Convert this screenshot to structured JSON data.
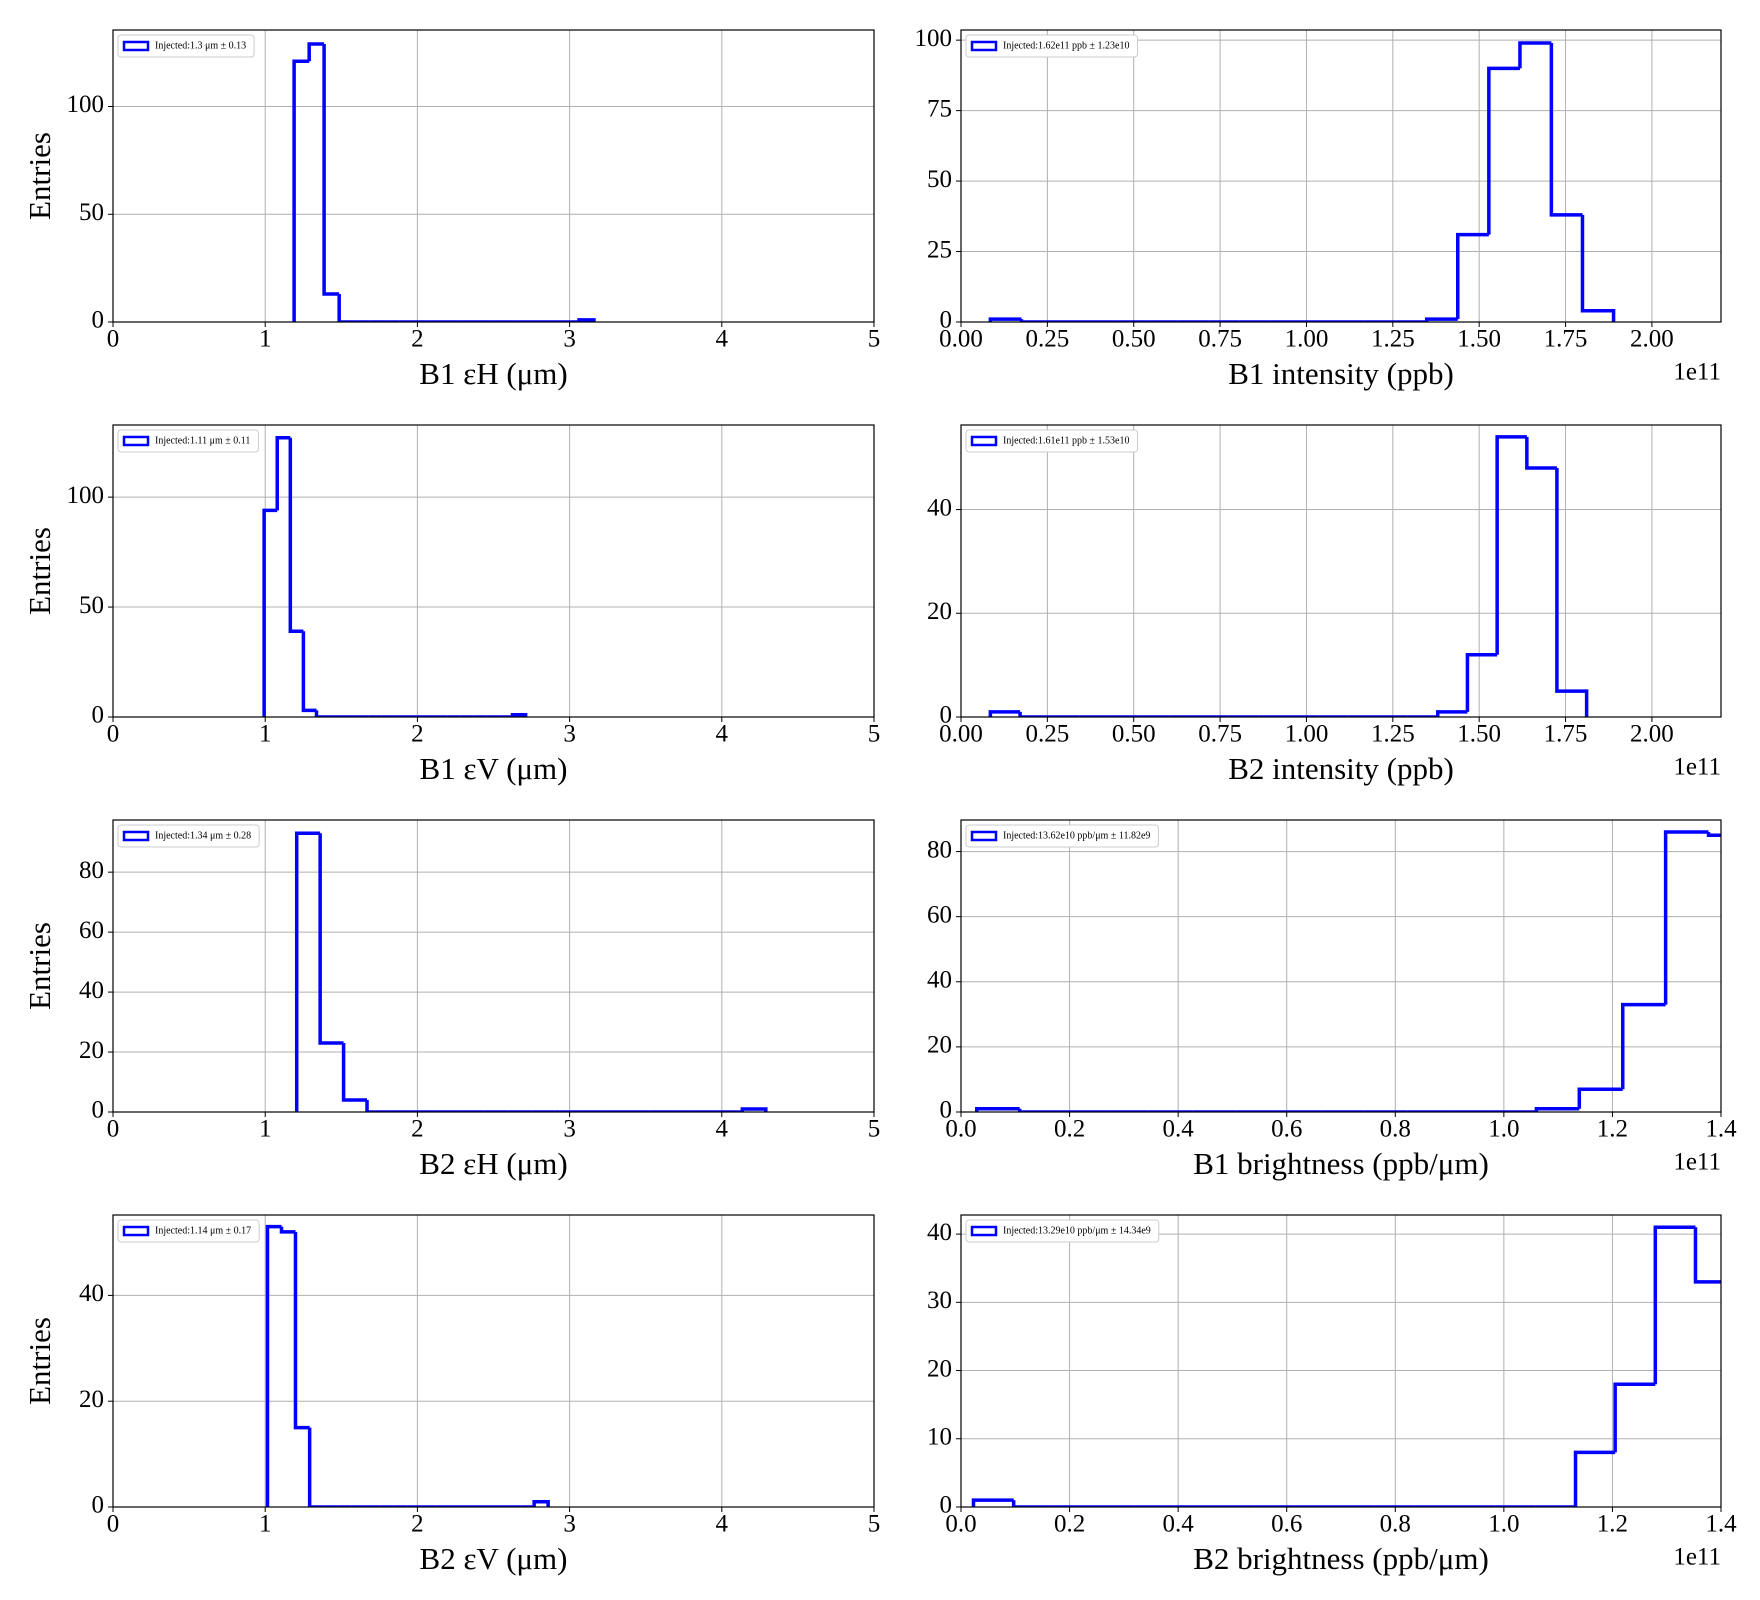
{
  "chart_data": [
    {
      "type": "histogram",
      "xlabel": "B1 εH (μm)",
      "ylabel": "Entries",
      "bins": [
        1.19,
        1.289,
        1.387,
        1.486,
        1.584,
        1.683,
        1.781,
        1.88,
        1.978,
        2.077,
        2.175,
        2.274,
        2.372,
        2.471,
        2.569,
        2.668,
        2.766,
        2.865,
        2.963,
        3.062,
        3.16
      ],
      "series": [
        {
          "name": "Injected:1.3 μm ± 0.13",
          "color": "#0000ff",
          "values": [
            121,
            129,
            13,
            0,
            0,
            0,
            0,
            0,
            0,
            0,
            0,
            0,
            0,
            0,
            0,
            0,
            0,
            0,
            0,
            1
          ]
        }
      ],
      "xlim": [
        0,
        5
      ],
      "xticks": [
        0,
        1,
        2,
        3,
        4,
        5
      ],
      "ylim": [
        0,
        135.5
      ],
      "yticks": [
        0,
        50,
        100
      ],
      "grid": true
    },
    {
      "type": "histogram",
      "xlabel": "B1 intensity (ppb)",
      "x_offset_label": "1e11",
      "bins": [
        0.085,
        0.175,
        0.265,
        0.356,
        0.446,
        0.536,
        0.626,
        0.716,
        0.807,
        0.897,
        0.987,
        1.077,
        1.167,
        1.258,
        1.348,
        1.438,
        1.528,
        1.618,
        1.709,
        1.799,
        1.889
      ],
      "series": [
        {
          "name": "Injected:1.62e11 ppb ± 1.23e10",
          "color": "#0000ff",
          "values": [
            1,
            0,
            0,
            0,
            0,
            0,
            0,
            0,
            0,
            0,
            0,
            0,
            0,
            0,
            1,
            31,
            90,
            99,
            38,
            4
          ]
        }
      ],
      "xlim": [
        0,
        2.2
      ],
      "xticks": [
        {
          "value": 0,
          "label": "0.00"
        },
        {
          "value": 0.25,
          "label": "0.25"
        },
        {
          "value": 0.5,
          "label": "0.50"
        },
        {
          "value": 0.75,
          "label": "0.75"
        },
        {
          "value": 1,
          "label": "1.00"
        },
        {
          "value": 1.25,
          "label": "1.25"
        },
        {
          "value": 1.5,
          "label": "1.50"
        },
        {
          "value": 1.75,
          "label": "1.75"
        },
        {
          "value": 2,
          "label": "2.00"
        }
      ],
      "ylim": [
        0,
        103.6
      ],
      "yticks": [
        0,
        25,
        50,
        75,
        100
      ],
      "grid": true
    },
    {
      "type": "histogram",
      "xlabel": "B1 εV (μm)",
      "ylabel": "Entries",
      "bins": [
        0.993,
        1.079,
        1.165,
        1.251,
        1.337,
        1.423,
        1.508,
        1.594,
        1.68,
        1.766,
        1.852,
        1.938,
        2.024,
        2.11,
        2.196,
        2.282,
        2.367,
        2.453,
        2.539,
        2.625,
        2.711
      ],
      "series": [
        {
          "name": "Injected:1.11 μm ± 0.11",
          "color": "#0000ff",
          "values": [
            94,
            127,
            39,
            3,
            0,
            0,
            0,
            0,
            0,
            0,
            0,
            0,
            0,
            0,
            0,
            0,
            0,
            0,
            0,
            1
          ]
        }
      ],
      "xlim": [
        0,
        5
      ],
      "xticks": [
        0,
        1,
        2,
        3,
        4,
        5
      ],
      "ylim": [
        0,
        132.8
      ],
      "yticks": [
        0,
        50,
        100
      ],
      "grid": true
    },
    {
      "type": "histogram",
      "xlabel": "B2 intensity (ppb)",
      "x_offset_label": "1e11",
      "bins": [
        0.085,
        0.171,
        0.258,
        0.344,
        0.43,
        0.517,
        0.603,
        0.689,
        0.775,
        0.862,
        0.948,
        1.034,
        1.121,
        1.207,
        1.293,
        1.38,
        1.466,
        1.552,
        1.638,
        1.725,
        1.811
      ],
      "series": [
        {
          "name": "Injected:1.61e11 ppb ± 1.53e10",
          "color": "#0000ff",
          "values": [
            1,
            0,
            0,
            0,
            0,
            0,
            0,
            0,
            0,
            0,
            0,
            0,
            0,
            0,
            0,
            1,
            12,
            54,
            48,
            5
          ]
        }
      ],
      "xlim": [
        0,
        2.2
      ],
      "xticks": [
        {
          "value": 0,
          "label": "0.00"
        },
        {
          "value": 0.25,
          "label": "0.25"
        },
        {
          "value": 0.5,
          "label": "0.50"
        },
        {
          "value": 0.75,
          "label": "0.75"
        },
        {
          "value": 1,
          "label": "1.00"
        },
        {
          "value": 1.25,
          "label": "1.25"
        },
        {
          "value": 1.5,
          "label": "1.50"
        },
        {
          "value": 1.75,
          "label": "1.75"
        },
        {
          "value": 2,
          "label": "2.00"
        }
      ],
      "ylim": [
        0,
        56.3
      ],
      "yticks": [
        0,
        20,
        40
      ],
      "grid": true
    },
    {
      "type": "histogram",
      "xlabel": "B2 εH (μm)",
      "ylabel": "Entries",
      "bins": [
        1.207,
        1.361,
        1.515,
        1.669,
        1.823,
        1.978,
        2.132,
        2.286,
        2.44,
        2.594,
        2.748,
        2.902,
        3.056,
        3.21,
        3.364,
        3.519,
        3.673,
        3.827,
        3.981,
        4.135,
        4.289
      ],
      "series": [
        {
          "name": "Injected:1.34 μm ± 0.28",
          "color": "#0000ff",
          "values": [
            93,
            23,
            4,
            0,
            0,
            0,
            0,
            0,
            0,
            0,
            0,
            0,
            0,
            0,
            0,
            0,
            0,
            0,
            0,
            1
          ]
        }
      ],
      "xlim": [
        0,
        5
      ],
      "xticks": [
        0,
        1,
        2,
        3,
        4,
        5
      ],
      "ylim": [
        0,
        97.4
      ],
      "yticks": [
        0,
        20,
        40,
        60,
        80
      ],
      "grid": true
    },
    {
      "type": "histogram",
      "xlabel": "B1 brightness (ppb/μm)",
      "x_offset_label": "1e11",
      "bins": [
        0.029,
        0.108,
        0.188,
        0.267,
        0.346,
        0.426,
        0.505,
        0.584,
        0.663,
        0.743,
        0.822,
        0.901,
        0.981,
        1.06,
        1.139,
        1.219,
        1.298,
        1.377,
        1.456
      ],
      "series": [
        {
          "name": "Injected:13.62e10 ppb/μm ± 11.82e9",
          "color": "#0000ff",
          "values": [
            1,
            0,
            0,
            0,
            0,
            0,
            0,
            0,
            0,
            0,
            0,
            0,
            0,
            1,
            7,
            33,
            86,
            85
          ]
        }
      ],
      "xlim": [
        0,
        1.4
      ],
      "xticks": [
        {
          "value": 0,
          "label": "0.0"
        },
        {
          "value": 0.2,
          "label": "0.2"
        },
        {
          "value": 0.4,
          "label": "0.4"
        },
        {
          "value": 0.6,
          "label": "0.6"
        },
        {
          "value": 0.8,
          "label": "0.8"
        },
        {
          "value": 1,
          "label": "1.0"
        },
        {
          "value": 1.2,
          "label": "1.2"
        },
        {
          "value": 1.4,
          "label": "1.4"
        }
      ],
      "ylim": [
        0,
        89.7
      ],
      "yticks": [
        0,
        20,
        40,
        60,
        80
      ],
      "grid": true
    },
    {
      "type": "histogram",
      "xlabel": "B2 εV (μm)",
      "ylabel": "Entries",
      "bins": [
        1.015,
        1.107,
        1.199,
        1.292,
        1.384,
        1.476,
        1.568,
        1.66,
        1.753,
        1.845,
        1.937,
        2.029,
        2.121,
        2.214,
        2.306,
        2.398,
        2.49,
        2.582,
        2.675,
        2.767,
        2.859
      ],
      "series": [
        {
          "name": "Injected:1.14 μm ± 0.17",
          "color": "#0000ff",
          "values": [
            53,
            52,
            15,
            0,
            0,
            0,
            0,
            0,
            0,
            0,
            0,
            0,
            0,
            0,
            0,
            0,
            0,
            0,
            0,
            1
          ]
        }
      ],
      "xlim": [
        0,
        5
      ],
      "xticks": [
        0,
        1,
        2,
        3,
        4,
        5
      ],
      "ylim": [
        0,
        55.2
      ],
      "yticks": [
        0,
        20,
        40
      ],
      "grid": true
    },
    {
      "type": "histogram",
      "xlabel": "B2 brightness (ppb/μm)",
      "x_offset_label": "1e11",
      "bins": [
        0.023,
        0.097,
        0.171,
        0.245,
        0.319,
        0.393,
        0.466,
        0.54,
        0.614,
        0.688,
        0.762,
        0.836,
        0.91,
        0.984,
        1.058,
        1.132,
        1.205,
        1.279,
        1.353,
        1.427
      ],
      "series": [
        {
          "name": "Injected:13.29e10 ppb/μm ± 14.34e9",
          "color": "#0000ff",
          "values": [
            1,
            0,
            0,
            0,
            0,
            0,
            0,
            0,
            0,
            0,
            0,
            0,
            0,
            0,
            0,
            8,
            18,
            41,
            33
          ]
        }
      ],
      "xlim": [
        0,
        1.4
      ],
      "xticks": [
        {
          "value": 0,
          "label": "0.0"
        },
        {
          "value": 0.2,
          "label": "0.2"
        },
        {
          "value": 0.4,
          "label": "0.4"
        },
        {
          "value": 0.6,
          "label": "0.6"
        },
        {
          "value": 0.8,
          "label": "0.8"
        },
        {
          "value": 1,
          "label": "1.0"
        },
        {
          "value": 1.2,
          "label": "1.2"
        },
        {
          "value": 1.4,
          "label": "1.4"
        }
      ],
      "ylim": [
        0,
        42.8
      ],
      "yticks": [
        0,
        10,
        20,
        30,
        40
      ],
      "grid": true
    }
  ]
}
